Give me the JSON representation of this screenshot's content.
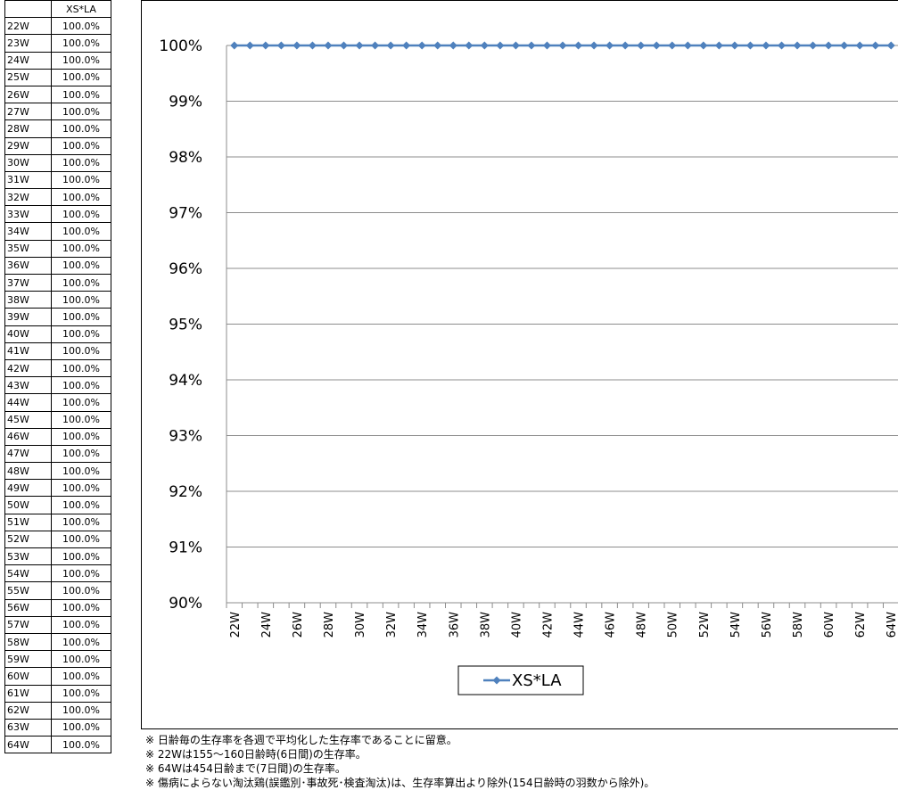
{
  "table": {
    "header_corner": "",
    "header_series": "XS*LA",
    "rows": [
      {
        "week": "22W",
        "value": "100.0%"
      },
      {
        "week": "23W",
        "value": "100.0%"
      },
      {
        "week": "24W",
        "value": "100.0%"
      },
      {
        "week": "25W",
        "value": "100.0%"
      },
      {
        "week": "26W",
        "value": "100.0%"
      },
      {
        "week": "27W",
        "value": "100.0%"
      },
      {
        "week": "28W",
        "value": "100.0%"
      },
      {
        "week": "29W",
        "value": "100.0%"
      },
      {
        "week": "30W",
        "value": "100.0%"
      },
      {
        "week": "31W",
        "value": "100.0%"
      },
      {
        "week": "32W",
        "value": "100.0%"
      },
      {
        "week": "33W",
        "value": "100.0%"
      },
      {
        "week": "34W",
        "value": "100.0%"
      },
      {
        "week": "35W",
        "value": "100.0%"
      },
      {
        "week": "36W",
        "value": "100.0%"
      },
      {
        "week": "37W",
        "value": "100.0%"
      },
      {
        "week": "38W",
        "value": "100.0%"
      },
      {
        "week": "39W",
        "value": "100.0%"
      },
      {
        "week": "40W",
        "value": "100.0%"
      },
      {
        "week": "41W",
        "value": "100.0%"
      },
      {
        "week": "42W",
        "value": "100.0%"
      },
      {
        "week": "43W",
        "value": "100.0%"
      },
      {
        "week": "44W",
        "value": "100.0%"
      },
      {
        "week": "45W",
        "value": "100.0%"
      },
      {
        "week": "46W",
        "value": "100.0%"
      },
      {
        "week": "47W",
        "value": "100.0%"
      },
      {
        "week": "48W",
        "value": "100.0%"
      },
      {
        "week": "49W",
        "value": "100.0%"
      },
      {
        "week": "50W",
        "value": "100.0%"
      },
      {
        "week": "51W",
        "value": "100.0%"
      },
      {
        "week": "52W",
        "value": "100.0%"
      },
      {
        "week": "53W",
        "value": "100.0%"
      },
      {
        "week": "54W",
        "value": "100.0%"
      },
      {
        "week": "55W",
        "value": "100.0%"
      },
      {
        "week": "56W",
        "value": "100.0%"
      },
      {
        "week": "57W",
        "value": "100.0%"
      },
      {
        "week": "58W",
        "value": "100.0%"
      },
      {
        "week": "59W",
        "value": "100.0%"
      },
      {
        "week": "60W",
        "value": "100.0%"
      },
      {
        "week": "61W",
        "value": "100.0%"
      },
      {
        "week": "62W",
        "value": "100.0%"
      },
      {
        "week": "63W",
        "value": "100.0%"
      },
      {
        "week": "64W",
        "value": "100.0%"
      }
    ]
  },
  "chart_data": {
    "type": "line",
    "title": "",
    "xlabel": "",
    "ylabel": "",
    "categories": [
      "22W",
      "23W",
      "24W",
      "25W",
      "26W",
      "27W",
      "28W",
      "29W",
      "30W",
      "31W",
      "32W",
      "33W",
      "34W",
      "35W",
      "36W",
      "37W",
      "38W",
      "39W",
      "40W",
      "41W",
      "42W",
      "43W",
      "44W",
      "45W",
      "46W",
      "47W",
      "48W",
      "49W",
      "50W",
      "51W",
      "52W",
      "53W",
      "54W",
      "55W",
      "56W",
      "57W",
      "58W",
      "59W",
      "60W",
      "61W",
      "62W",
      "63W",
      "64W"
    ],
    "x_tick_labels": [
      "22W",
      "24W",
      "26W",
      "28W",
      "30W",
      "32W",
      "34W",
      "36W",
      "38W",
      "40W",
      "42W",
      "44W",
      "46W",
      "48W",
      "50W",
      "52W",
      "54W",
      "56W",
      "58W",
      "60W",
      "62W",
      "64W"
    ],
    "series": [
      {
        "name": "XS*LA",
        "color": "#4f81bd",
        "marker": "diamond",
        "values": [
          100,
          100,
          100,
          100,
          100,
          100,
          100,
          100,
          100,
          100,
          100,
          100,
          100,
          100,
          100,
          100,
          100,
          100,
          100,
          100,
          100,
          100,
          100,
          100,
          100,
          100,
          100,
          100,
          100,
          100,
          100,
          100,
          100,
          100,
          100,
          100,
          100,
          100,
          100,
          100,
          100,
          100,
          100
        ]
      }
    ],
    "ylim": [
      90,
      100
    ],
    "y_ticks": [
      90,
      91,
      92,
      93,
      94,
      95,
      96,
      97,
      98,
      99,
      100
    ],
    "y_tick_format": "percent",
    "grid": "horizontal",
    "legend_position": "bottom-center"
  },
  "notes": [
    "※ 日齢毎の生存率を各週で平均化した生存率であることに留意。",
    "※ 22Wは155〜160日齢時(6日間)の生存率。",
    "※ 64Wは454日齢まで(7日間)の生存率。",
    "※ 傷病によらない淘汰鶏(誤鑑別･事故死･検査淘汰)は、生存率算出より除外(154日齢時の羽数から除外)。"
  ]
}
